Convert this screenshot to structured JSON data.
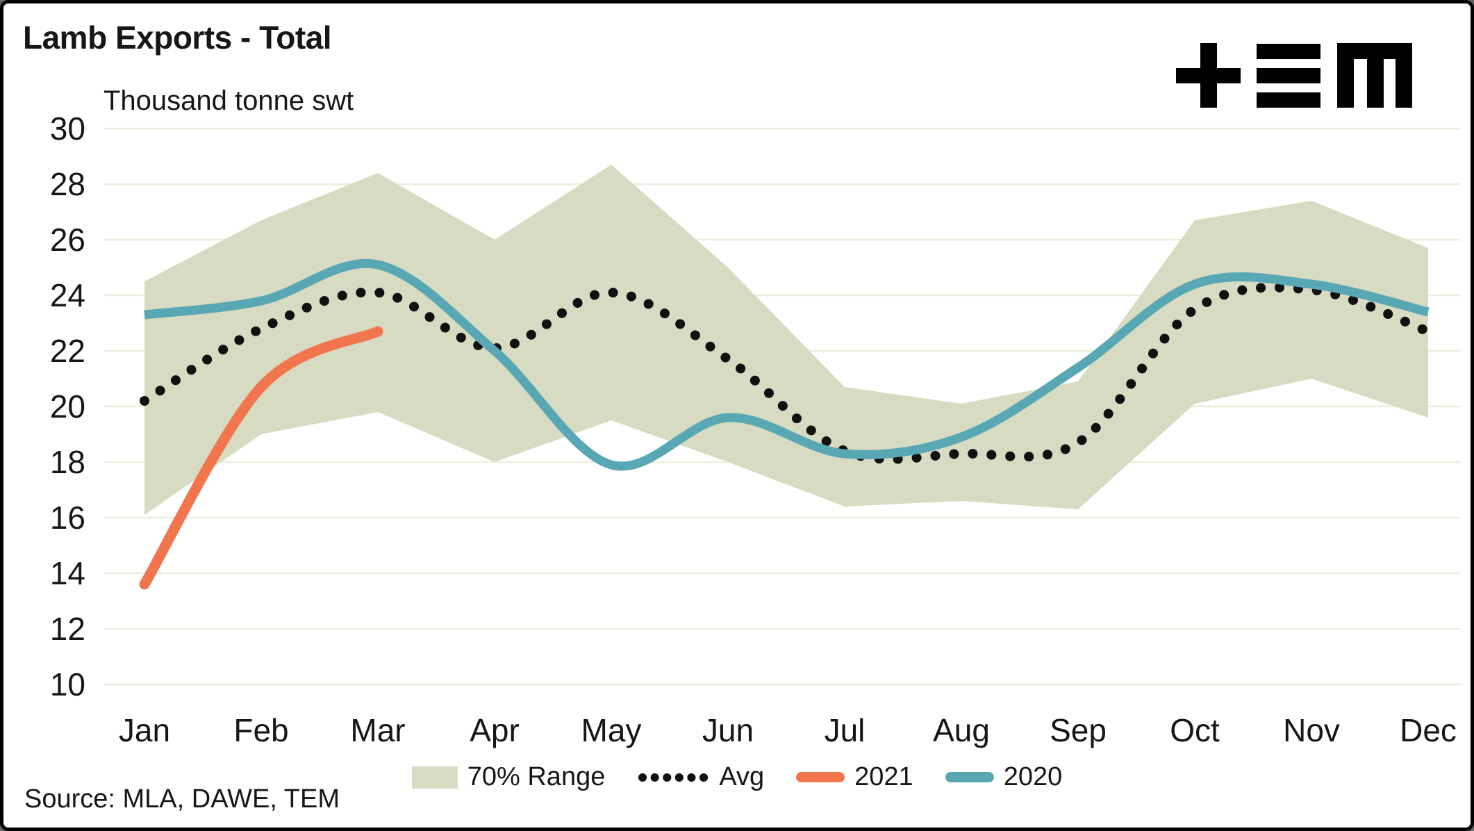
{
  "header": {
    "title": "Lamb Exports - Total",
    "subtitle": "Thousand tonne swt"
  },
  "logo": {
    "name": "TEM",
    "color": "#111111"
  },
  "footer": {
    "source": "Source: MLA, DAWE, TEM"
  },
  "colors": {
    "background": "#ffffff",
    "gridline": "#ededdf",
    "text": "#161616",
    "band": "#d7dbc1",
    "avg": "#111111",
    "y2021": "#f2764d",
    "y2020": "#58a7b5"
  },
  "chart_data": {
    "type": "line",
    "title": "Lamb Exports - Total",
    "ylabel": "Thousand tonne swt",
    "categories": [
      "Jan",
      "Feb",
      "Mar",
      "Apr",
      "May",
      "Jun",
      "Jul",
      "Aug",
      "Sep",
      "Oct",
      "Nov",
      "Dec"
    ],
    "ylim": [
      10,
      30
    ],
    "yticks": [
      10,
      12,
      14,
      16,
      18,
      20,
      22,
      24,
      26,
      28,
      30
    ],
    "grid": "horizontal",
    "legend_position": "bottom-center",
    "series": [
      {
        "name": "70% Range",
        "type": "band",
        "color": "#d7dbc1",
        "upper": [
          24.5,
          26.7,
          28.4,
          26.0,
          28.7,
          25.0,
          20.7,
          20.1,
          20.9,
          26.7,
          27.4,
          25.7
        ],
        "lower": [
          16.1,
          19.0,
          19.8,
          18.0,
          19.5,
          18.0,
          16.4,
          16.6,
          16.3,
          20.1,
          21.0,
          19.6
        ]
      },
      {
        "name": "Avg",
        "type": "dotted-line",
        "color": "#111111",
        "values": [
          20.2,
          22.8,
          24.1,
          22.1,
          24.1,
          21.7,
          18.4,
          18.3,
          18.7,
          23.5,
          24.2,
          22.7
        ]
      },
      {
        "name": "2021",
        "type": "line",
        "color": "#f2764d",
        "values": [
          13.6,
          20.7,
          22.7
        ]
      },
      {
        "name": "2020",
        "type": "line",
        "color": "#58a7b5",
        "values": [
          23.3,
          23.8,
          25.1,
          22.0,
          17.9,
          19.6,
          18.3,
          18.9,
          21.4,
          24.4,
          24.4,
          23.4
        ]
      }
    ]
  }
}
